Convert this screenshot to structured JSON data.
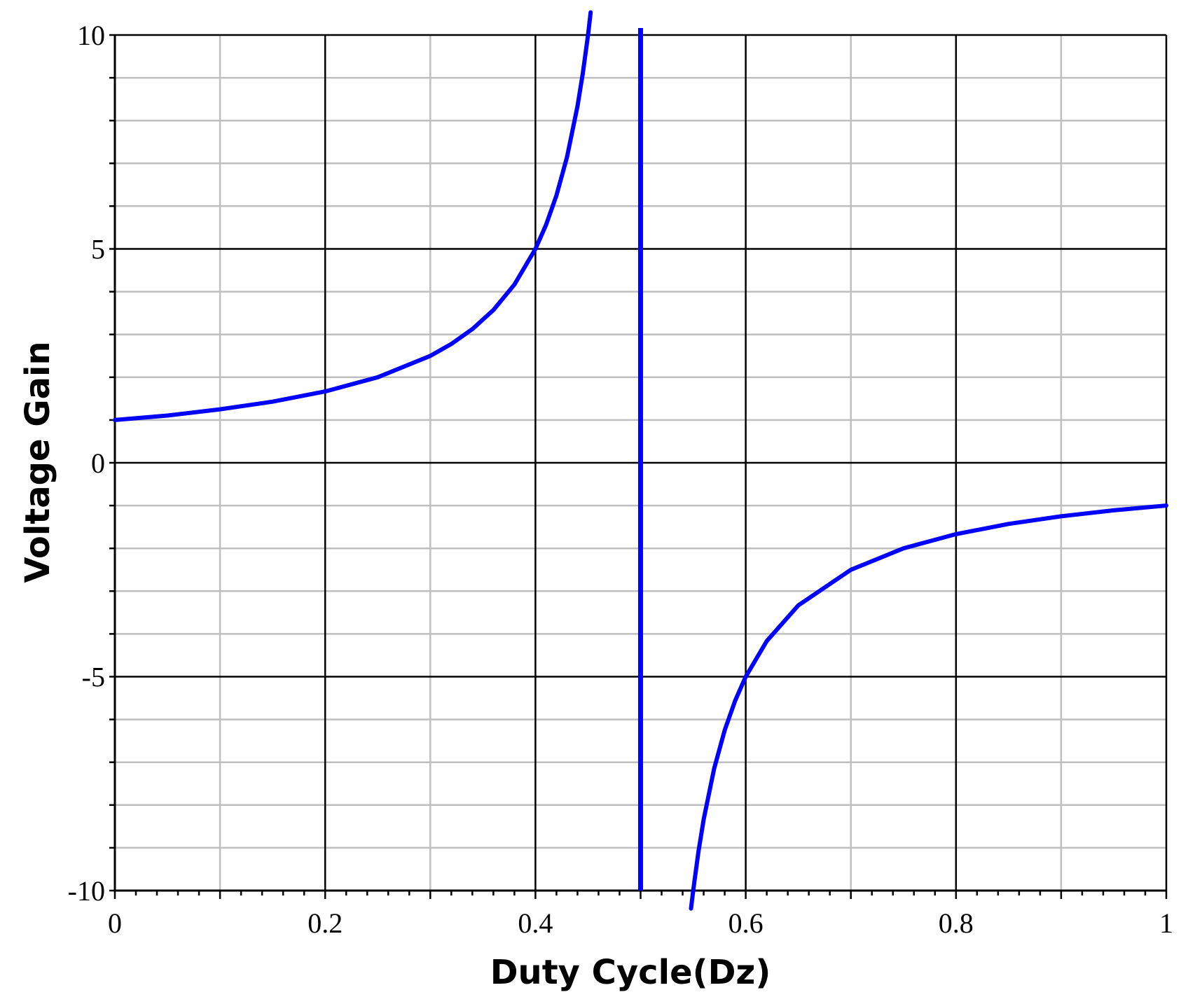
{
  "chart_data": {
    "type": "line",
    "title": "",
    "xlabel": "Duty Cycle(Dz)",
    "ylabel": "Voltage Gain",
    "xlim": [
      0,
      1
    ],
    "ylim": [
      -10,
      10
    ],
    "x_ticks": [
      {
        "value": 0,
        "label": "0"
      },
      {
        "value": 0.2,
        "label": "0.2"
      },
      {
        "value": 0.4,
        "label": "0.4"
      },
      {
        "value": 0.6,
        "label": "0.6"
      },
      {
        "value": 0.8,
        "label": "0.8"
      },
      {
        "value": 1,
        "label": "1"
      }
    ],
    "y_ticks": [
      {
        "value": 10,
        "label": "10"
      },
      {
        "value": 5,
        "label": "5"
      },
      {
        "value": 0,
        "label": "0"
      },
      {
        "value": -5,
        "label": "-5"
      },
      {
        "value": -10,
        "label": "-10"
      }
    ],
    "grid": true,
    "legend": "none",
    "series": [
      {
        "color": "#0000ff",
        "branches": [
          {
            "x": [
              0,
              0.05,
              0.1,
              0.15,
              0.2,
              0.25,
              0.3,
              0.32,
              0.34,
              0.36,
              0.38,
              0.4,
              0.41,
              0.42,
              0.43,
              0.44,
              0.445,
              0.45,
              0.4525
            ],
            "y": [
              1.0,
              1.105,
              1.25,
              1.429,
              1.667,
              2.0,
              2.5,
              2.778,
              3.125,
              3.571,
              4.167,
              5.0,
              5.556,
              6.25,
              7.143,
              8.333,
              9.091,
              10.0,
              10.53
            ]
          },
          {
            "x": [
              0.548,
              0.55,
              0.555,
              0.56,
              0.57,
              0.58,
              0.59,
              0.6,
              0.62,
              0.65,
              0.7,
              0.75,
              0.8,
              0.85,
              0.9,
              0.95,
              1.0
            ],
            "y": [
              -10.42,
              -10.0,
              -9.091,
              -8.333,
              -7.143,
              -6.25,
              -5.556,
              -5.0,
              -4.167,
              -3.333,
              -2.5,
              -2.0,
              -1.667,
              -1.429,
              -1.25,
              -1.111,
              -1.0
            ]
          }
        ]
      }
    ],
    "asymptote_x": 0.5
  }
}
